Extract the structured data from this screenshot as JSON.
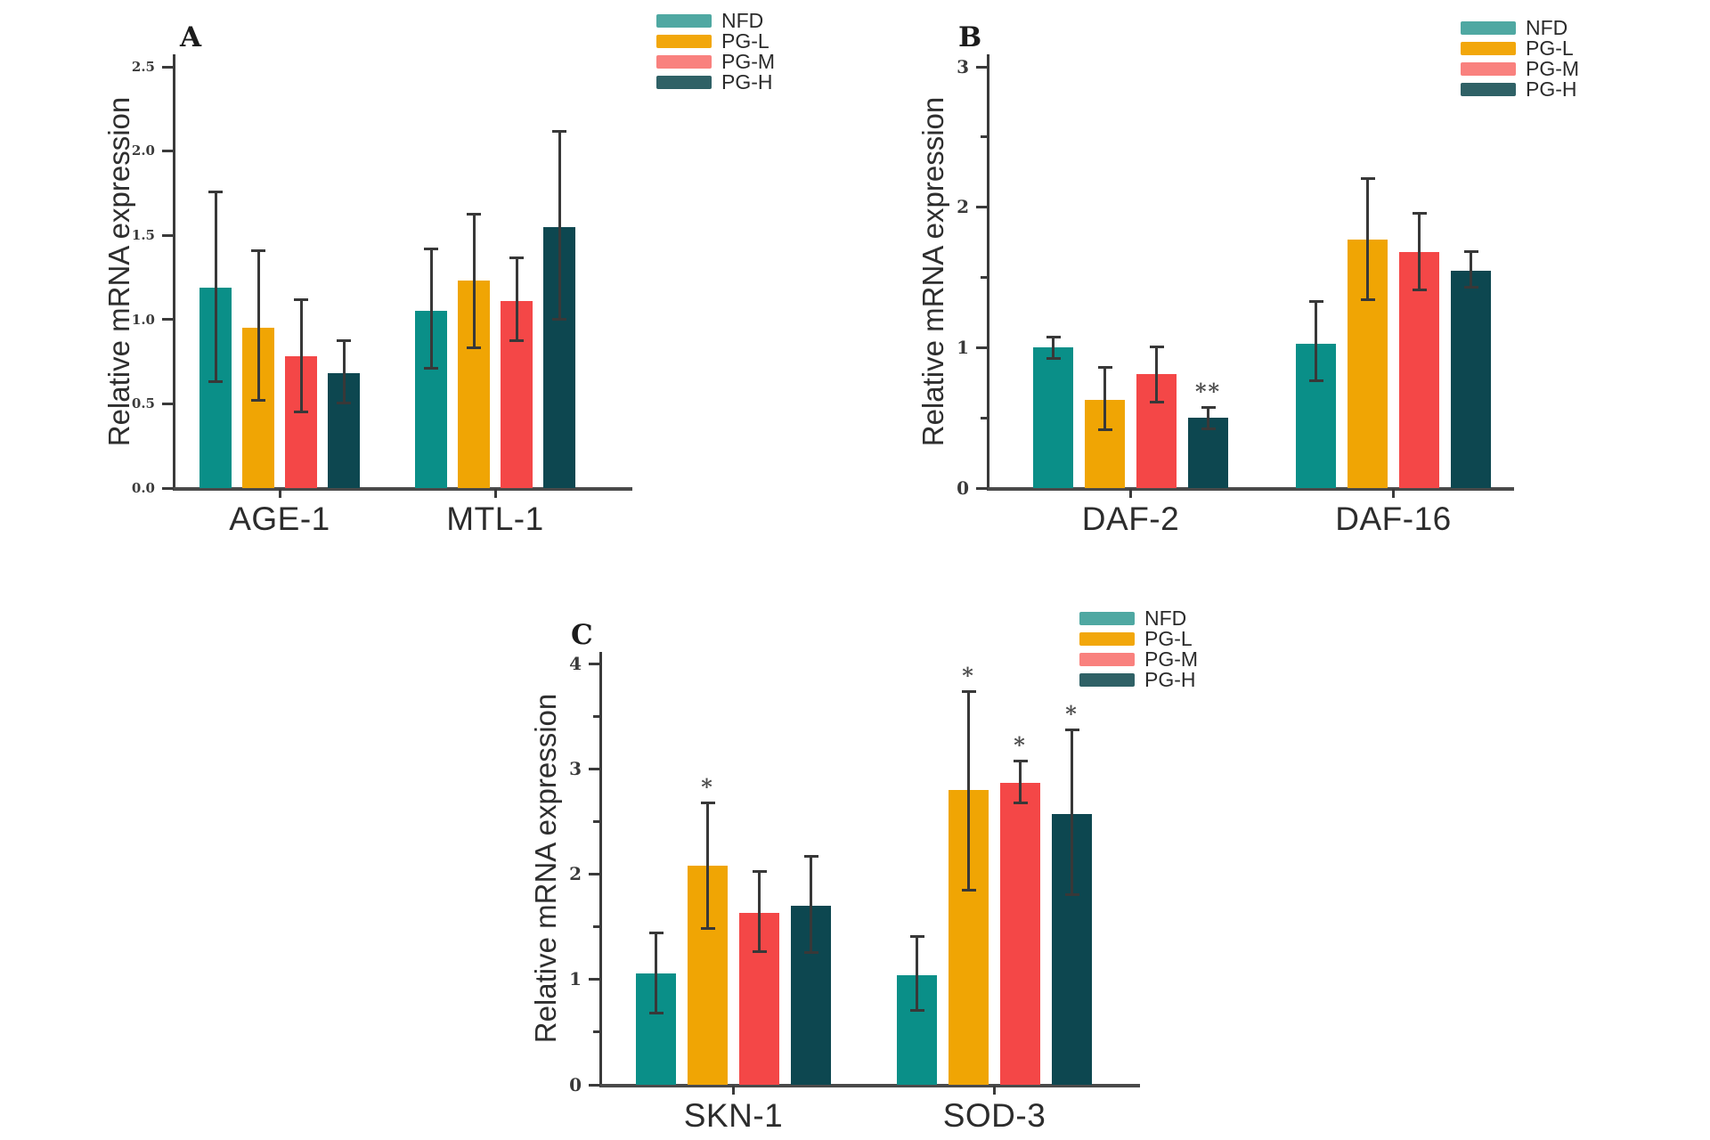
{
  "figure": {
    "background": "#ffffff",
    "legend": {
      "items": [
        {
          "label": "NFD",
          "swatch_color": "#4fa8a2",
          "bar_color": "#0a8f88"
        },
        {
          "label": "PG-L",
          "swatch_color": "#f2a70b",
          "bar_color": "#f0a504"
        },
        {
          "label": "PG-M",
          "swatch_color": "#f9817e",
          "bar_color": "#f44747"
        },
        {
          "label": "PG-H",
          "swatch_color": "#2f6166",
          "bar_color": "#0d4750"
        }
      ]
    }
  },
  "chart_data": [
    {
      "type": "bar",
      "panel": "A",
      "title": "",
      "xlabel": "",
      "ylabel": "Relative mRNA expression",
      "ylim": [
        0,
        2.5
      ],
      "ytick_vals": [
        0,
        0.5,
        1.0,
        1.5,
        2.0,
        2.5
      ],
      "ytick_labels": [
        "0.0",
        "0.5",
        "1.0",
        "1.5",
        "2.0",
        "2.5"
      ],
      "ytick_minor_vals": [],
      "grid": false,
      "legend_position": "outside-top-right",
      "categories": [
        "AGE-1",
        "MTL-1"
      ],
      "series": [
        {
          "name": "NFD",
          "values": [
            1.19,
            1.05
          ],
          "error_low": [
            0.63,
            0.71
          ],
          "error_high": [
            1.76,
            1.42
          ],
          "sig": [
            "",
            ""
          ]
        },
        {
          "name": "PG-L",
          "values": [
            0.95,
            1.23
          ],
          "error_low": [
            0.52,
            0.83
          ],
          "error_high": [
            1.41,
            1.63
          ],
          "sig": [
            "",
            ""
          ]
        },
        {
          "name": "PG-M",
          "values": [
            0.78,
            1.11
          ],
          "error_low": [
            0.45,
            0.87
          ],
          "error_high": [
            1.12,
            1.37
          ],
          "sig": [
            "",
            ""
          ]
        },
        {
          "name": "PG-H",
          "values": [
            0.68,
            1.55
          ],
          "error_low": [
            0.5,
            1.0
          ],
          "error_high": [
            0.88,
            2.12
          ],
          "sig": [
            "",
            ""
          ]
        }
      ]
    },
    {
      "type": "bar",
      "panel": "B",
      "title": "",
      "xlabel": "",
      "ylabel": "Relative mRNA expression",
      "ylim": [
        0,
        3
      ],
      "ytick_vals": [
        0,
        1,
        2,
        3
      ],
      "ytick_labels": [
        "0",
        "1",
        "2",
        "3"
      ],
      "ytick_minor_vals": [
        0.5,
        1.5,
        2.5
      ],
      "grid": false,
      "legend_position": "outside-top-right",
      "categories": [
        "DAF-2",
        "DAF-16"
      ],
      "series": [
        {
          "name": "NFD",
          "values": [
            1.0,
            1.03
          ],
          "error_low": [
            0.92,
            0.76
          ],
          "error_high": [
            1.08,
            1.33
          ],
          "sig": [
            "",
            ""
          ]
        },
        {
          "name": "PG-L",
          "values": [
            0.63,
            1.77
          ],
          "error_low": [
            0.41,
            1.34
          ],
          "error_high": [
            0.86,
            2.21
          ],
          "sig": [
            "",
            ""
          ]
        },
        {
          "name": "PG-M",
          "values": [
            0.81,
            1.68
          ],
          "error_low": [
            0.61,
            1.41
          ],
          "error_high": [
            1.01,
            1.96
          ],
          "sig": [
            "",
            ""
          ]
        },
        {
          "name": "PG-H",
          "values": [
            0.5,
            1.55
          ],
          "error_low": [
            0.42,
            1.43
          ],
          "error_high": [
            0.58,
            1.69
          ],
          "sig": [
            "**",
            ""
          ]
        }
      ]
    },
    {
      "type": "bar",
      "panel": "C",
      "title": "",
      "xlabel": "",
      "ylabel": "Relative mRNA expression",
      "ylim": [
        0,
        4
      ],
      "ytick_vals": [
        0,
        1,
        2,
        3,
        4
      ],
      "ytick_labels": [
        "0",
        "1",
        "2",
        "3",
        "4"
      ],
      "ytick_minor_vals": [
        0.5,
        1.5,
        2.5,
        3.5
      ],
      "grid": false,
      "legend_position": "outside-top-right",
      "categories": [
        "SKN-1",
        "SOD-3"
      ],
      "series": [
        {
          "name": "NFD",
          "values": [
            1.06,
            1.04
          ],
          "error_low": [
            0.68,
            0.7
          ],
          "error_high": [
            1.45,
            1.41
          ],
          "sig": [
            "",
            ""
          ]
        },
        {
          "name": "PG-L",
          "values": [
            2.08,
            2.8
          ],
          "error_low": [
            1.48,
            1.84
          ],
          "error_high": [
            2.68,
            3.74
          ],
          "sig": [
            "*",
            "*"
          ]
        },
        {
          "name": "PG-M",
          "values": [
            1.63,
            2.87
          ],
          "error_low": [
            1.26,
            2.67
          ],
          "error_high": [
            2.03,
            3.08
          ],
          "sig": [
            "",
            "*"
          ]
        },
        {
          "name": "PG-H",
          "values": [
            1.7,
            2.57
          ],
          "error_low": [
            1.25,
            1.8
          ],
          "error_high": [
            2.17,
            3.37
          ],
          "sig": [
            "",
            "*"
          ]
        }
      ]
    }
  ]
}
